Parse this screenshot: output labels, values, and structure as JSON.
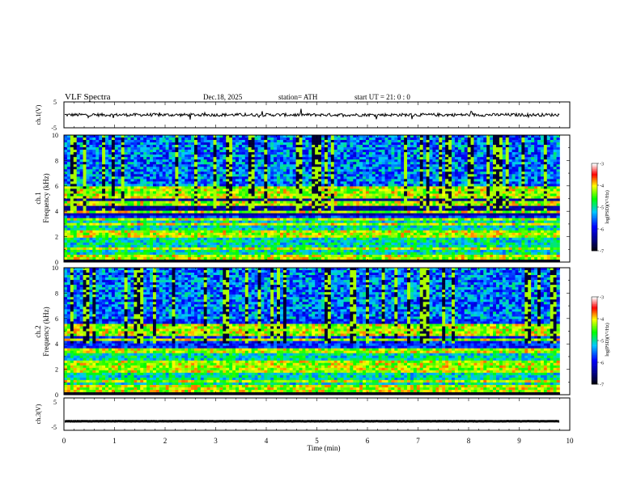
{
  "header": {
    "title": "VLF  Spectra",
    "date": "Dec.18, 2025",
    "station": "station= ATH",
    "start": "start  UT  =    21: 0   : 0"
  },
  "chart_data": [
    {
      "type": "line",
      "name": "ch1-waveform",
      "ylabel": "ch.1(V)",
      "ylim": [
        -5,
        5
      ],
      "yticks": [
        "5",
        "-5"
      ],
      "xlim": [
        0,
        10
      ],
      "baseline": 0.0,
      "noise_amplitude": 0.6
    },
    {
      "type": "heatmap",
      "name": "ch1-spectrogram",
      "ylabel_top": "ch.1",
      "ylabel": "Frequency  (kHz)",
      "ylim": [
        0,
        10
      ],
      "yticks": [
        "0",
        "2",
        "4",
        "6",
        "8",
        "10"
      ],
      "xlim": [
        0,
        9.8
      ],
      "colorbar": {
        "label": "log(PSD)(V²/Hz)",
        "range": [
          -7,
          -3
        ],
        "ticks": [
          "-3",
          "-4",
          "-5",
          "-6",
          "-7"
        ],
        "colors": [
          "#000000",
          "#0000ff",
          "#00c8ff",
          "#00ff00",
          "#ffff00",
          "#ff0000",
          "#ffffff"
        ]
      },
      "strong_lines_khz": [
        0.2,
        0.5,
        1.0,
        2.0,
        2.3,
        3.0,
        3.3,
        4.0,
        4.6,
        5.2,
        5.6,
        5.9
      ],
      "dark_bands_khz": [
        [
          0.15,
          0.35
        ],
        [
          3.6,
          4.4
        ],
        [
          4.6,
          5.0
        ]
      ]
    },
    {
      "type": "heatmap",
      "name": "ch2-spectrogram",
      "ylabel_top": "ch.2",
      "ylabel": "Frequency  (kHz)",
      "ylim": [
        0,
        10
      ],
      "yticks": [
        "0",
        "2",
        "4",
        "6",
        "8",
        "10"
      ],
      "xlim": [
        0,
        9.8
      ],
      "colorbar": {
        "label": "log(PSD)(V²/Hz)",
        "range": [
          -7,
          -3
        ],
        "ticks": [
          "-3",
          "-4",
          "-5",
          "-6",
          "-7"
        ],
        "colors": [
          "#000000",
          "#0000ff",
          "#00c8ff",
          "#00ff00",
          "#ffff00",
          "#ff0000",
          "#ffffff"
        ]
      },
      "strong_lines_khz": [
        0.3,
        0.6,
        1.0,
        1.9,
        2.1,
        2.5,
        3.3,
        3.6,
        4.3,
        4.7,
        5.0,
        5.4
      ],
      "dark_bands_khz": [
        [
          0.15,
          0.3
        ]
      ]
    },
    {
      "type": "line",
      "name": "ch3-waveform",
      "ylabel": "ch.3(V)",
      "ylim": [
        -5,
        5
      ],
      "yticks": [
        "5",
        "-5"
      ],
      "xlim": [
        0,
        10
      ],
      "baseline": -2.2,
      "noise_amplitude": 0.05
    }
  ],
  "xaxis": {
    "label": "Time  (min)",
    "ticks": [
      "0",
      "1",
      "2",
      "3",
      "4",
      "5",
      "6",
      "7",
      "8",
      "9",
      "10"
    ]
  }
}
